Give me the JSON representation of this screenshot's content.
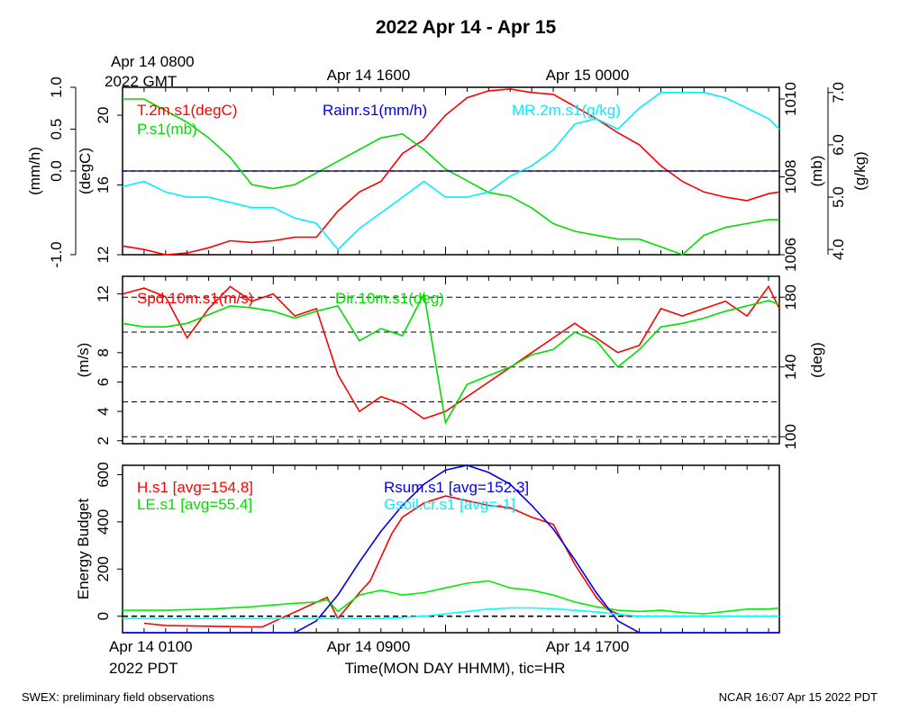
{
  "title": "2022 Apr 14 - Apr 15",
  "top_axis": {
    "first_label": "Apr 14 0800",
    "first_sublabel": "2022 GMT",
    "labels": [
      "Apr 14 1600",
      "Apr 15 0000"
    ]
  },
  "bottom_axis": {
    "first_label": "Apr 14 0100",
    "first_sublabel": "2022 PDT",
    "labels": [
      "Apr 14 0900",
      "Apr 14 1700"
    ],
    "xlabel": "Time(MON DAY HHMM), tic=HR"
  },
  "footer": {
    "left": "SWEX: preliminary field observations",
    "right": "NCAR 16:07 Apr 15 2022 PDT"
  },
  "chart_data": [
    {
      "type": "line",
      "x_unit": "hours since Apr 14 0100 PDT",
      "xlim": [
        0,
        30.5
      ],
      "axes": {
        "rain": {
          "label": "(mm/h)",
          "lim": [
            -1.0,
            1.0
          ],
          "ticks": [
            "-1.0",
            "0.0",
            "0.5",
            "1.0"
          ],
          "tick_values": [
            -1.0,
            0.0,
            0.5,
            1.0
          ]
        },
        "temp": {
          "label": "(degC)",
          "lim": [
            12,
            21.6
          ],
          "ticks": [
            "12",
            "16",
            "20"
          ],
          "tick_values": [
            12,
            16,
            20
          ]
        },
        "press": {
          "label": "(mb)",
          "lim": [
            1006,
            1010.3
          ],
          "ticks": [
            "1006",
            "1008",
            "1010"
          ],
          "tick_values": [
            1006,
            1008,
            1010
          ]
        },
        "mr": {
          "label": "(g/kg)",
          "lim": [
            3.9,
            7.1
          ],
          "ticks": [
            "4.0",
            "5.0",
            "6.0",
            "7.0"
          ],
          "tick_values": [
            4.0,
            5.0,
            6.0,
            7.0
          ]
        }
      },
      "legend": [
        "T.2m.s1(degC)",
        "P.s1(mb)",
        "Rainr.s1(mm/h)",
        "MR.2m.s1(g/kg)"
      ],
      "series": [
        {
          "name": "T.2m.s1(degC)",
          "axis": "temp",
          "color": "#ff0000",
          "x": [
            0,
            1,
            2,
            3,
            4,
            5,
            6,
            7,
            8,
            9,
            10,
            11,
            12,
            13,
            14,
            15,
            16,
            17,
            18,
            19,
            20,
            21,
            22,
            23,
            24,
            25,
            26,
            27,
            28,
            29,
            30,
            30.5
          ],
          "y": [
            12.5,
            12.3,
            12.0,
            12.1,
            12.4,
            12.8,
            12.7,
            12.8,
            13.0,
            13.0,
            14.5,
            15.6,
            16.2,
            17.8,
            18.6,
            20.0,
            21.0,
            21.4,
            21.5,
            21.3,
            21.2,
            20.5,
            19.8,
            19.0,
            18.3,
            17.1,
            16.2,
            15.6,
            15.3,
            15.1,
            15.5,
            15.6
          ]
        },
        {
          "name": "P.s1(mb)",
          "axis": "press",
          "color": "#00dd00",
          "x": [
            0,
            1,
            2,
            3,
            4,
            5,
            6,
            7,
            8,
            9,
            10,
            11,
            12,
            13,
            14,
            15,
            16,
            17,
            18,
            19,
            20,
            21,
            22,
            23,
            24,
            25,
            26,
            27,
            28,
            29,
            30,
            30.5
          ],
          "y": [
            1010.0,
            1010.0,
            1009.7,
            1009.4,
            1009.0,
            1008.5,
            1007.8,
            1007.7,
            1007.8,
            1008.1,
            1008.4,
            1008.7,
            1009.0,
            1009.1,
            1008.7,
            1008.2,
            1007.9,
            1007.6,
            1007.5,
            1007.2,
            1006.8,
            1006.6,
            1006.5,
            1006.4,
            1006.4,
            1006.2,
            1005.9,
            1006.5,
            1006.7,
            1006.8,
            1006.9,
            1006.9
          ]
        },
        {
          "name": "Rainr.s1(mm/h)",
          "axis": "rain",
          "color": "#0000ee",
          "x": [
            0,
            30.5
          ],
          "y": [
            0.0,
            0.0
          ]
        },
        {
          "name": "MR.2m.s1(g/kg)",
          "axis": "mr",
          "color": "#00eeff",
          "x": [
            0,
            1,
            2,
            3,
            4,
            5,
            6,
            7,
            8,
            9,
            10,
            11,
            12,
            13,
            14,
            15,
            16,
            17,
            18,
            19,
            20,
            21,
            22,
            23,
            24,
            25,
            26,
            27,
            28,
            29,
            30,
            30.5
          ],
          "y": [
            5.2,
            5.3,
            5.1,
            5.0,
            5.0,
            4.9,
            4.8,
            4.8,
            4.6,
            4.5,
            4.0,
            4.4,
            4.7,
            5.0,
            5.3,
            5.0,
            5.0,
            5.1,
            5.4,
            5.6,
            5.9,
            6.4,
            6.5,
            6.3,
            6.7,
            7.0,
            7.0,
            7.0,
            6.9,
            6.7,
            6.5,
            6.3
          ]
        }
      ]
    },
    {
      "type": "line",
      "x_unit": "hours since Apr 14 0100 PDT",
      "xlim": [
        0,
        30.5
      ],
      "axes": {
        "spd": {
          "label": "(m/s)",
          "lim": [
            1.8,
            13.2
          ],
          "ticks": [
            "2",
            "4",
            "6",
            "8",
            "12"
          ],
          "tick_values": [
            2,
            4,
            6,
            8,
            12
          ]
        },
        "dir": {
          "label": "(deg)",
          "lim": [
            96,
            192
          ],
          "ticks": [
            "100",
            "140",
            "180"
          ],
          "tick_values": [
            100,
            140,
            180
          ]
        }
      },
      "dashed_dir_lines": [
        100,
        120,
        140,
        160,
        180
      ],
      "legend": [
        "Spd.10m.s1(m/s)",
        "Dir.10m.s1(deg)"
      ],
      "series": [
        {
          "name": "Spd.10m.s1(m/s)",
          "axis": "spd",
          "color": "#ff0000",
          "x": [
            0,
            1,
            2,
            3,
            4,
            5,
            6,
            7,
            8,
            9,
            10,
            11,
            12,
            13,
            14,
            15,
            16,
            17,
            18,
            19,
            20,
            21,
            22,
            23,
            24,
            25,
            26,
            27,
            28,
            29,
            30,
            30.5
          ],
          "y": [
            12.0,
            12.4,
            11.8,
            9.0,
            11.0,
            12.5,
            11.5,
            12.0,
            10.5,
            11.0,
            6.5,
            4.0,
            5.0,
            4.5,
            3.5,
            4.0,
            5.0,
            6.0,
            7.0,
            8.0,
            9.0,
            10.0,
            9.0,
            8.0,
            8.5,
            11.0,
            10.5,
            11.0,
            11.5,
            10.5,
            12.5,
            11.0
          ]
        },
        {
          "name": "Dir.10m.s1(deg)",
          "axis": "dir",
          "color": "#00dd00",
          "x": [
            0,
            1,
            2,
            3,
            4,
            5,
            6,
            7,
            8,
            9,
            10,
            11,
            12,
            13,
            14,
            15,
            16,
            17,
            18,
            19,
            20,
            21,
            22,
            23,
            24,
            25,
            26,
            27,
            28,
            29,
            30,
            30.5
          ],
          "y": [
            165,
            163,
            163,
            165,
            170,
            175,
            174,
            172,
            168,
            172,
            175,
            155,
            162,
            158,
            182,
            108,
            130,
            135,
            140,
            147,
            150,
            160,
            155,
            140,
            150,
            163,
            165,
            168,
            172,
            175,
            178,
            176
          ]
        }
      ]
    },
    {
      "type": "line",
      "x_unit": "hours since Apr 14 0100 PDT",
      "xlim": [
        0,
        30.5
      ],
      "ylabel": "Energy Budget",
      "ylim": [
        -70,
        640
      ],
      "yticks": [
        0,
        200,
        400,
        600
      ],
      "legend": [
        "H.s1 [avg=154.8]",
        "LE.s1 [avg=55.4]",
        "Rsum.s1 [avg=152.3]",
        "Gsoil.cr.s1 [avg=-1]"
      ],
      "series": [
        {
          "name": "H.s1 [avg=154.8]",
          "color": "#ff0000",
          "x": [
            1,
            2,
            6,
            6.5,
            9.5,
            10,
            11,
            11.5,
            12,
            12.5,
            13,
            14,
            15,
            16,
            17,
            18,
            19,
            20,
            21,
            22,
            22.5,
            23,
            23.5
          ],
          "y": [
            -30,
            -40,
            -45,
            -45,
            80,
            -10,
            100,
            150,
            250,
            350,
            420,
            480,
            510,
            490,
            470,
            460,
            420,
            390,
            220,
            80,
            30,
            10,
            0
          ]
        },
        {
          "name": "LE.s1 [avg=55.4]",
          "color": "#00ee00",
          "x": [
            0,
            2,
            4,
            6,
            8,
            9,
            9.5,
            10,
            11,
            12,
            13,
            14,
            15,
            16,
            17,
            18,
            19,
            20,
            21,
            22,
            23,
            24,
            25,
            26,
            27,
            28,
            29,
            30,
            30.5
          ],
          "y": [
            25,
            25,
            30,
            40,
            55,
            60,
            70,
            20,
            90,
            110,
            90,
            100,
            120,
            140,
            150,
            120,
            110,
            90,
            60,
            40,
            25,
            20,
            25,
            15,
            10,
            20,
            30,
            30,
            35
          ]
        },
        {
          "name": "Rsum.s1 [avg=152.3]",
          "color": "#0000ee",
          "x": [
            0,
            8,
            9,
            10,
            11,
            12,
            13,
            14,
            15,
            16,
            17,
            18,
            19,
            20,
            21,
            22,
            23,
            24,
            30.5
          ],
          "y": [
            -70,
            -70,
            -20,
            90,
            230,
            360,
            470,
            560,
            620,
            640,
            610,
            560,
            470,
            370,
            240,
            100,
            -20,
            -70,
            -70
          ]
        },
        {
          "name": "Gsoil.cr.s1 [avg=-1]",
          "color": "#00ffff",
          "x": [
            0,
            12,
            13,
            14,
            15,
            16,
            17,
            18,
            19,
            20,
            21,
            22,
            23,
            24,
            30.5
          ],
          "y": [
            -10,
            -10,
            -5,
            0,
            10,
            20,
            30,
            35,
            35,
            32,
            25,
            18,
            8,
            0,
            0
          ]
        }
      ]
    }
  ]
}
